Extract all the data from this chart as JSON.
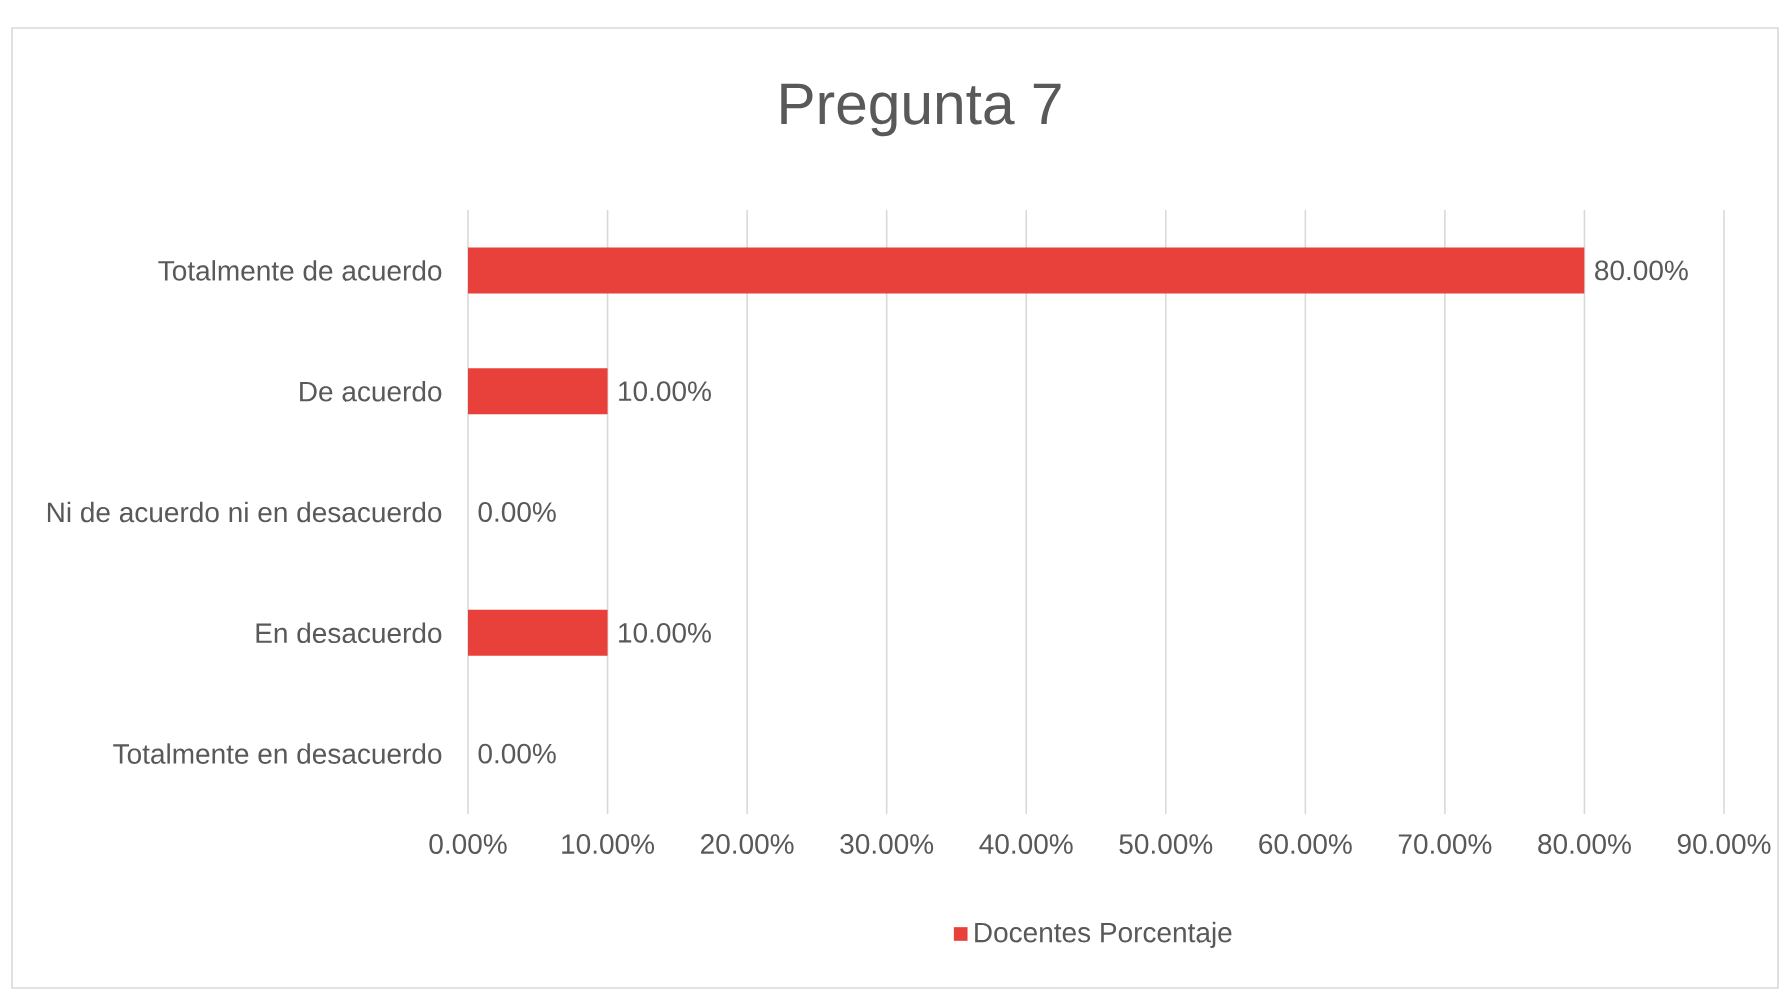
{
  "chart_data": {
    "type": "bar",
    "orientation": "horizontal",
    "title": "Pregunta 7",
    "categories": [
      "Totalmente de acuerdo",
      "De acuerdo",
      "Ni de acuerdo ni en desacuerdo",
      "En desacuerdo",
      "Totalmente en desacuerdo"
    ],
    "series": [
      {
        "name": "Docentes Porcentaje",
        "color": "#e8403a",
        "values": [
          80,
          10,
          0,
          10,
          0
        ],
        "value_labels": [
          "80.00%",
          "10.00%",
          "0.00%",
          "10.00%",
          "0.00%"
        ]
      }
    ],
    "xlim": [
      0,
      90
    ],
    "xticks": [
      {
        "value": 0,
        "label": "0.00%"
      },
      {
        "value": 10,
        "label": "10.00%"
      },
      {
        "value": 20,
        "label": "20.00%"
      },
      {
        "value": 30,
        "label": "30.00%"
      },
      {
        "value": 40,
        "label": "40.00%"
      },
      {
        "value": 50,
        "label": "50.00%"
      },
      {
        "value": 60,
        "label": "60.00%"
      },
      {
        "value": 70,
        "label": "70.00%"
      },
      {
        "value": 80,
        "label": "80.00%"
      },
      {
        "value": 90,
        "label": "90.00%"
      }
    ],
    "grid": "x",
    "legend": "bottom"
  }
}
